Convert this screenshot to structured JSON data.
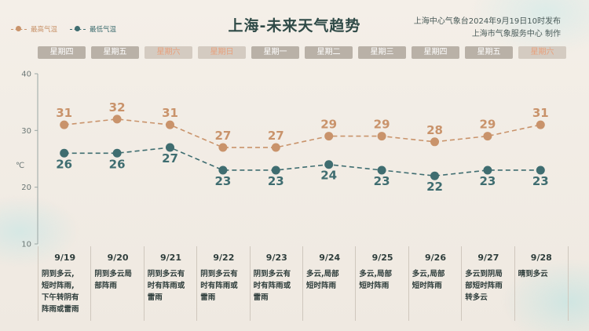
{
  "page_title": "上海-未来天气趋势",
  "source": {
    "line1": "上海中心气象台2024年9月19日10时发布",
    "line2": "上海市气象服务中心 制作"
  },
  "legend": {
    "high": "最高气温",
    "low": "最低气温"
  },
  "weekdays": [
    "星期四",
    "星期五",
    "星期六",
    "星期日",
    "星期一",
    "星期二",
    "星期三",
    "星期四",
    "星期五",
    "星期六"
  ],
  "colors": {
    "high": "#c9936b",
    "low": "#3f6d70",
    "weekend_text": "#e8a07c"
  },
  "chart_data": {
    "type": "line",
    "ylabel": "℃",
    "ylim": [
      10,
      40
    ],
    "yticks": [
      "10",
      "20",
      "30",
      "40"
    ],
    "categories": [
      "9/19",
      "9/20",
      "9/21",
      "9/22",
      "9/23",
      "9/24",
      "9/25",
      "9/26",
      "9/27",
      "9/28"
    ],
    "series": [
      {
        "name": "最高气温",
        "values": [
          31,
          32,
          31,
          27,
          27,
          29,
          29,
          28,
          29,
          31
        ]
      },
      {
        "name": "最低气温",
        "values": [
          26,
          26,
          27,
          23,
          23,
          24,
          23,
          22,
          23,
          23
        ]
      }
    ]
  },
  "forecast": [
    {
      "date": "9/19",
      "desc": [
        "阴到多云,",
        "短时阵雨,",
        "下午转阴有",
        "阵雨或雷雨"
      ]
    },
    {
      "date": "9/20",
      "desc": [
        "阴到多云局",
        "部阵雨"
      ]
    },
    {
      "date": "9/21",
      "desc": [
        "阴到多云有",
        "时有阵雨或",
        "雷雨"
      ]
    },
    {
      "date": "9/22",
      "desc": [
        "阴到多云有",
        "时有阵雨或",
        "雷雨"
      ]
    },
    {
      "date": "9/23",
      "desc": [
        "阴到多云有",
        "时有阵雨或",
        "雷雨"
      ]
    },
    {
      "date": "9/24",
      "desc": [
        "多云,局部",
        "短时阵雨"
      ]
    },
    {
      "date": "9/25",
      "desc": [
        "多云,局部",
        "短时阵雨"
      ]
    },
    {
      "date": "9/26",
      "desc": [
        "多云,局部",
        "短时阵雨"
      ]
    },
    {
      "date": "9/27",
      "desc": [
        "多云到阴局",
        "部短时阵雨",
        "转多云"
      ]
    },
    {
      "date": "9/28",
      "desc": [
        "晴到多云"
      ]
    }
  ]
}
